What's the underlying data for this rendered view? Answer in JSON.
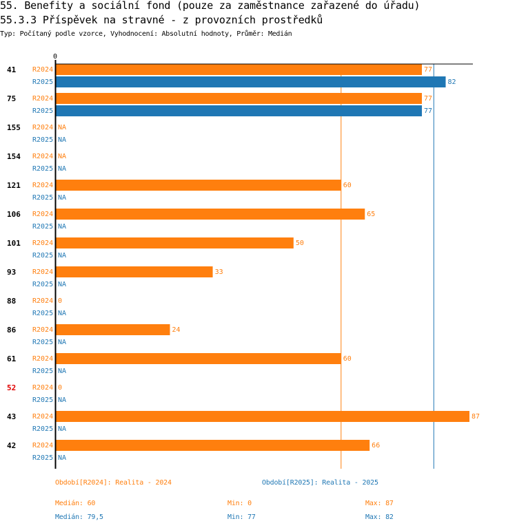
{
  "header": {
    "title": "55. Benefity a sociální fond (pouze za zaměstnance zařazené do úřadu)",
    "subtitle": "55.3.3 Příspěvek na stravné - z provozních prostředků",
    "info": "Typ: Počítaný podle vzorce, Vyhodnocení: Absolutní hodnoty, Průměr: Medián"
  },
  "colors": {
    "R2024": "#ff7f0e",
    "R2025": "#1f77b4",
    "highlight": "#e00000"
  },
  "chart_data": {
    "type": "bar",
    "orientation": "horizontal",
    "xlim": [
      0,
      87
    ],
    "x_tick_labels": [
      "0"
    ],
    "series_names": [
      "R2024",
      "R2025"
    ],
    "categories": [
      {
        "label": "41",
        "highlight": false,
        "values": [
          77,
          82
        ]
      },
      {
        "label": "75",
        "highlight": false,
        "values": [
          77,
          77
        ]
      },
      {
        "label": "155",
        "highlight": false,
        "values": [
          null,
          null
        ]
      },
      {
        "label": "154",
        "highlight": false,
        "values": [
          null,
          null
        ]
      },
      {
        "label": "121",
        "highlight": false,
        "values": [
          60,
          null
        ]
      },
      {
        "label": "106",
        "highlight": false,
        "values": [
          65,
          null
        ]
      },
      {
        "label": "101",
        "highlight": false,
        "values": [
          50,
          null
        ]
      },
      {
        "label": "93",
        "highlight": false,
        "values": [
          33,
          null
        ]
      },
      {
        "label": "88",
        "highlight": false,
        "values": [
          0,
          null
        ]
      },
      {
        "label": "86",
        "highlight": false,
        "values": [
          24,
          null
        ]
      },
      {
        "label": "61",
        "highlight": false,
        "values": [
          60,
          null
        ]
      },
      {
        "label": "52",
        "highlight": true,
        "values": [
          0,
          null
        ]
      },
      {
        "label": "43",
        "highlight": false,
        "values": [
          87,
          null
        ]
      },
      {
        "label": "42",
        "highlight": false,
        "values": [
          66,
          null
        ]
      }
    ],
    "na_label": "NA",
    "median_lines": {
      "R2024": 60,
      "R2025": 79.5
    }
  },
  "legend": {
    "period_2024": "Období[R2024]: Realita - 2024",
    "period_2025": "Období[R2025]: Realita - 2025",
    "stats_2024": {
      "median": "Medián: 60",
      "min": "Min: 0",
      "max": "Max: 87"
    },
    "stats_2025": {
      "median": "Medián: 79,5",
      "min": "Min: 77",
      "max": "Max: 82"
    }
  }
}
